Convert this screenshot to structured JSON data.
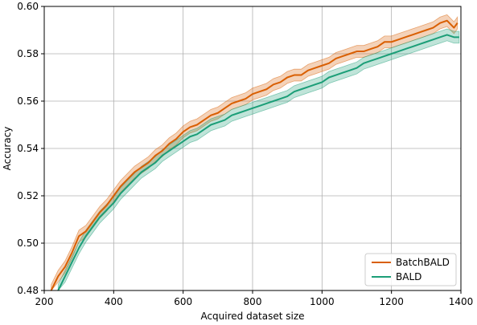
{
  "chart_data": {
    "type": "line",
    "xlabel": "Acquired dataset size",
    "ylabel": "Accuracy",
    "xlim": [
      200,
      1400
    ],
    "ylim": [
      0.48,
      0.6
    ],
    "xticks": [
      200,
      400,
      600,
      800,
      1000,
      1200,
      1400
    ],
    "yticks": [
      0.48,
      0.5,
      0.52,
      0.54,
      0.56,
      0.58,
      0.6
    ],
    "xtick_labels": [
      "200",
      "400",
      "600",
      "800",
      "1000",
      "1200",
      "1400"
    ],
    "ytick_labels": [
      "0.48",
      "0.50",
      "0.52",
      "0.54",
      "0.56",
      "0.58",
      "0.60"
    ],
    "grid": true,
    "legend_position": "lower-right",
    "series": [
      {
        "name": "BatchBALD",
        "color": "#d95f02",
        "band_half_width": 0.0025,
        "x": [
          220,
          240,
          260,
          280,
          300,
          320,
          340,
          360,
          380,
          400,
          420,
          440,
          460,
          480,
          500,
          520,
          540,
          560,
          580,
          600,
          620,
          640,
          660,
          680,
          700,
          720,
          740,
          760,
          780,
          800,
          820,
          840,
          860,
          880,
          900,
          920,
          940,
          960,
          980,
          1000,
          1020,
          1040,
          1060,
          1080,
          1100,
          1120,
          1140,
          1160,
          1180,
          1200,
          1220,
          1240,
          1260,
          1280,
          1300,
          1320,
          1340,
          1360,
          1380,
          1390
        ],
        "y": [
          0.48,
          0.486,
          0.49,
          0.496,
          0.503,
          0.505,
          0.509,
          0.513,
          0.516,
          0.52,
          0.524,
          0.527,
          0.53,
          0.532,
          0.534,
          0.537,
          0.539,
          0.542,
          0.544,
          0.547,
          0.549,
          0.55,
          0.552,
          0.554,
          0.555,
          0.557,
          0.559,
          0.56,
          0.561,
          0.563,
          0.564,
          0.565,
          0.567,
          0.568,
          0.57,
          0.571,
          0.571,
          0.573,
          0.574,
          0.575,
          0.576,
          0.578,
          0.579,
          0.58,
          0.581,
          0.581,
          0.582,
          0.583,
          0.585,
          0.585,
          0.586,
          0.587,
          0.588,
          0.589,
          0.59,
          0.591,
          0.593,
          0.594,
          0.591,
          0.593
        ]
      },
      {
        "name": "BALD",
        "color": "#1b9e77",
        "band_half_width": 0.0025,
        "x": [
          240,
          260,
          280,
          300,
          320,
          340,
          360,
          380,
          400,
          420,
          440,
          460,
          480,
          500,
          520,
          540,
          560,
          580,
          600,
          620,
          640,
          660,
          680,
          700,
          720,
          740,
          760,
          780,
          800,
          820,
          840,
          860,
          880,
          900,
          920,
          940,
          960,
          980,
          1000,
          1020,
          1040,
          1060,
          1080,
          1100,
          1120,
          1140,
          1160,
          1180,
          1200,
          1220,
          1240,
          1260,
          1280,
          1300,
          1320,
          1340,
          1360,
          1380,
          1395
        ],
        "y": [
          0.48,
          0.486,
          0.492,
          0.498,
          0.503,
          0.507,
          0.511,
          0.514,
          0.517,
          0.521,
          0.524,
          0.527,
          0.53,
          0.532,
          0.534,
          0.537,
          0.539,
          0.541,
          0.543,
          0.545,
          0.546,
          0.548,
          0.55,
          0.551,
          0.552,
          0.554,
          0.555,
          0.556,
          0.557,
          0.558,
          0.559,
          0.56,
          0.561,
          0.562,
          0.564,
          0.565,
          0.566,
          0.567,
          0.568,
          0.57,
          0.571,
          0.572,
          0.573,
          0.574,
          0.576,
          0.577,
          0.578,
          0.579,
          0.58,
          0.581,
          0.582,
          0.583,
          0.584,
          0.585,
          0.586,
          0.587,
          0.588,
          0.587,
          0.587
        ]
      }
    ]
  }
}
